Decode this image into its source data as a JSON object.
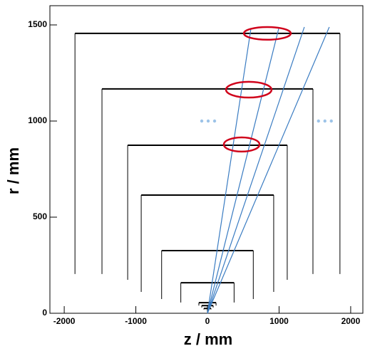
{
  "chart_data": {
    "type": "detector-layout",
    "xlabel": "z / mm",
    "ylabel": "r / mm",
    "xlim": [
      -2200,
      2170
    ],
    "ylim": [
      0,
      1600
    ],
    "xticks": [
      -2000,
      -1000,
      0,
      1000,
      2000
    ],
    "yticks": [
      0,
      500,
      1000,
      1500
    ],
    "layer_color": "#000000",
    "track_color": "#3a7cc2",
    "highlight_color": "#d0021b",
    "dots_color": "#9cc3e8",
    "layers": [
      {
        "r": 1456,
        "z": 1850,
        "rmin": 204
      },
      {
        "r": 1167,
        "z": 1473,
        "rmin": 204
      },
      {
        "r": 874,
        "z": 1114,
        "rmin": 174
      },
      {
        "r": 615,
        "z": 925,
        "rmin": 111
      },
      {
        "r": 326,
        "z": 640,
        "rmin": 74
      },
      {
        "r": 159,
        "z": 372,
        "rmin": 56
      },
      {
        "r": 55,
        "z": 120,
        "rmin": 40
      },
      {
        "r": 40,
        "z": 80,
        "rmin": 30
      },
      {
        "r": 25,
        "z": 50,
        "rmin": 20
      }
    ],
    "tracks": [
      {
        "z": 607,
        "r": 1481
      },
      {
        "z": 995,
        "r": 1481
      },
      {
        "z": 1353,
        "r": 1489
      },
      {
        "z": 1701,
        "r": 1489
      }
    ],
    "highlights": [
      {
        "z": 836,
        "r": 1456,
        "dz": 328,
        "dr": 33
      },
      {
        "z": 577,
        "r": 1163,
        "dz": 318,
        "dr": 41
      },
      {
        "z": 478,
        "r": 878,
        "dz": 249,
        "dr": 37
      }
    ],
    "dots": [
      {
        "z": 10,
        "r": 1000
      },
      {
        "z": 1640,
        "r": 1000
      }
    ]
  }
}
